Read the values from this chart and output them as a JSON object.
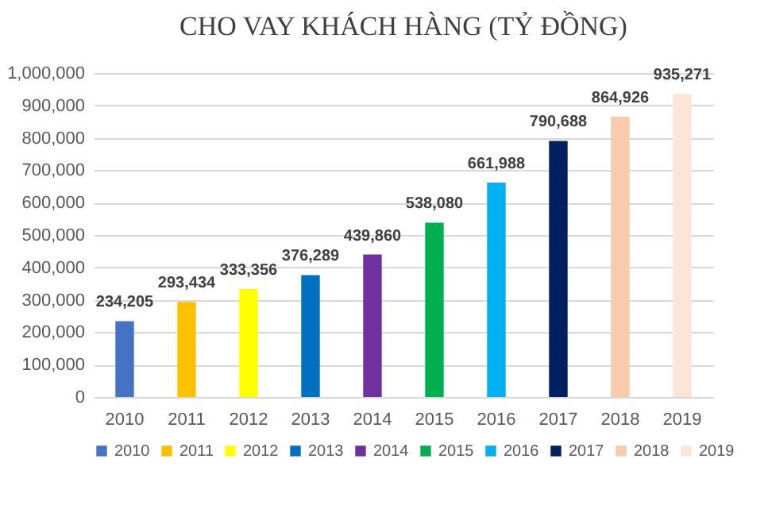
{
  "chart_data": {
    "type": "bar",
    "title": "CHO VAY KHÁCH HÀNG (TỶ ĐỒNG)",
    "categories": [
      "2010",
      "2011",
      "2012",
      "2013",
      "2014",
      "2015",
      "2016",
      "2017",
      "2018",
      "2019"
    ],
    "series": [
      {
        "name": "2010",
        "color": "#4472c4",
        "values": [
          234205,
          null,
          null,
          null,
          null,
          null,
          null,
          null,
          null,
          null
        ],
        "value_labels": [
          "234,205",
          null,
          null,
          null,
          null,
          null,
          null,
          null,
          null,
          null
        ]
      },
      {
        "name": "2011",
        "color": "#ffc000",
        "values": [
          null,
          293434,
          null,
          null,
          null,
          null,
          null,
          null,
          null,
          null
        ],
        "value_labels": [
          null,
          "293,434",
          null,
          null,
          null,
          null,
          null,
          null,
          null,
          null
        ]
      },
      {
        "name": "2012",
        "color": "#ffff00",
        "values": [
          null,
          null,
          333356,
          null,
          null,
          null,
          null,
          null,
          null,
          null
        ],
        "value_labels": [
          null,
          null,
          "333,356",
          null,
          null,
          null,
          null,
          null,
          null,
          null
        ]
      },
      {
        "name": "2013",
        "color": "#0070c0",
        "values": [
          null,
          null,
          null,
          376289,
          null,
          null,
          null,
          null,
          null,
          null
        ],
        "value_labels": [
          null,
          null,
          null,
          "376,289",
          null,
          null,
          null,
          null,
          null,
          null
        ]
      },
      {
        "name": "2014",
        "color": "#7030a0",
        "values": [
          null,
          null,
          null,
          null,
          439860,
          null,
          null,
          null,
          null,
          null
        ],
        "value_labels": [
          null,
          null,
          null,
          null,
          "439,860",
          null,
          null,
          null,
          null,
          null
        ]
      },
      {
        "name": "2015",
        "color": "#00b050",
        "values": [
          null,
          null,
          null,
          null,
          null,
          538080,
          null,
          null,
          null,
          null
        ],
        "value_labels": [
          null,
          null,
          null,
          null,
          null,
          "538,080",
          null,
          null,
          null,
          null
        ]
      },
      {
        "name": "2016",
        "color": "#00b0f0",
        "values": [
          null,
          null,
          null,
          null,
          null,
          null,
          661988,
          null,
          null,
          null
        ],
        "value_labels": [
          null,
          null,
          null,
          null,
          null,
          null,
          "661,988",
          null,
          null,
          null
        ]
      },
      {
        "name": "2017",
        "color": "#002060",
        "values": [
          null,
          null,
          null,
          null,
          null,
          null,
          null,
          790688,
          null,
          null
        ],
        "value_labels": [
          null,
          null,
          null,
          null,
          null,
          null,
          null,
          "790,688",
          null,
          null
        ]
      },
      {
        "name": "2018",
        "color": "#f8cbad",
        "values": [
          null,
          null,
          null,
          null,
          null,
          null,
          null,
          null,
          864926,
          null
        ],
        "value_labels": [
          null,
          null,
          null,
          null,
          null,
          null,
          null,
          null,
          "864,926",
          null
        ]
      },
      {
        "name": "2019",
        "color": "#fbe5d6",
        "values": [
          null,
          null,
          null,
          null,
          null,
          null,
          null,
          null,
          null,
          935271
        ],
        "value_labels": [
          null,
          null,
          null,
          null,
          null,
          null,
          null,
          null,
          null,
          "935,271"
        ]
      }
    ],
    "ylim": [
      0,
      1000000
    ],
    "yticks": [
      0,
      {
        "value": 100000,
        "label": "100,000"
      },
      {
        "value": 200000,
        "label": "200,000"
      },
      {
        "value": 300000,
        "label": "300,000"
      },
      {
        "value": 400000,
        "label": "400,000"
      },
      {
        "value": 500000,
        "label": "500,000"
      },
      {
        "value": 600000,
        "label": "600,000"
      },
      {
        "value": 700000,
        "label": "700,000"
      },
      {
        "value": 800000,
        "label": "800,000"
      },
      {
        "value": 900000,
        "label": "900,000"
      },
      {
        "value": 1000000,
        "label": "1,000,000"
      }
    ],
    "grid": "y",
    "legend": "bottom",
    "data_labels": true
  }
}
